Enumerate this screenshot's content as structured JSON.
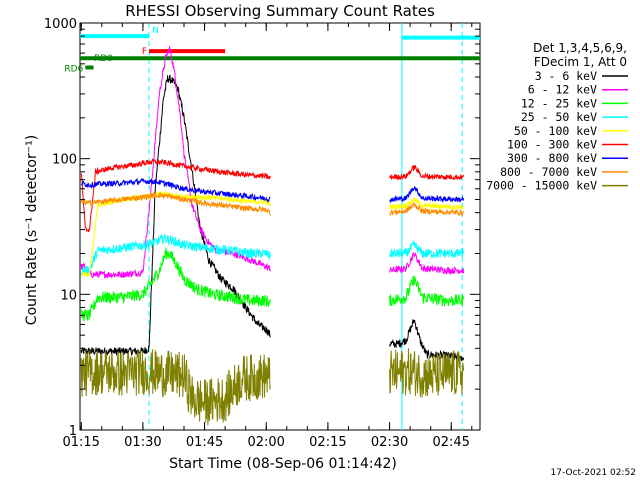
{
  "chart_data": {
    "type": "line",
    "title": "RHESSI Observing Summary Count Rates",
    "xlabel": "Start Time (08-Sep-06 01:14:42)",
    "ylabel": "Count Rate (s⁻¹ detector⁻¹)",
    "yscale": "log",
    "ylim": [
      1,
      1000
    ],
    "xlim": [
      "01:14:42",
      "02:52:00"
    ],
    "x_ticks": [
      "01:15",
      "01:30",
      "01:45",
      "02:00",
      "02:15",
      "02:30",
      "02:45"
    ],
    "y_ticks": [
      "1",
      "10",
      "100",
      "1000"
    ],
    "legend_title": [
      "Det 1,3,4,5,6,9,",
      "FDecim 1, Att 0"
    ],
    "legend_position": "right",
    "timestamp": "17-Oct-2021 02:52",
    "annotations": {
      "flags": [
        {
          "label": "N",
          "color": "#00ffff",
          "start": "01:14:42",
          "end": "01:31:30",
          "value": 800
        },
        {
          "label": "N",
          "color": "#00ffff",
          "start": "02:33:00",
          "end": "02:52:00",
          "value": 780
        },
        {
          "label": "F",
          "color": "#ff0000",
          "start": "01:31:30",
          "end": "01:50:00",
          "value": 620
        },
        {
          "label": "RD0",
          "color": "#008000",
          "start": "01:14:42",
          "end": "02:52:00",
          "value": 550
        },
        {
          "label": "RD6",
          "color": "#008000",
          "start": "01:16:00",
          "end": "01:18:00",
          "value": 470
        }
      ],
      "dashed_lines": [
        "01:31:30",
        "02:47:40"
      ],
      "solid_lines": [
        "02:33:00"
      ]
    },
    "series": [
      {
        "name": "3 - 6 keV",
        "color": "#000000",
        "points": [
          [
            "01:15:00",
            3.8
          ],
          [
            "01:30:00",
            3.8
          ],
          [
            "01:31:30",
            4
          ],
          [
            "01:33:00",
            60
          ],
          [
            "01:35:00",
            280
          ],
          [
            "01:36:00",
            390
          ],
          [
            "01:37:00",
            380
          ],
          [
            "01:38:30",
            330
          ],
          [
            "01:40:00",
            200
          ],
          [
            "01:42:00",
            80
          ],
          [
            "01:44:00",
            30
          ],
          [
            "01:46:00",
            18
          ],
          [
            "01:49:00",
            13
          ],
          [
            "01:52:00",
            11
          ],
          [
            "01:55:00",
            8
          ],
          [
            "01:58:00",
            6
          ],
          [
            "02:00:00",
            5.5
          ],
          [
            "02:01:00",
            5.0
          ]
        ],
        "segment2": [
          [
            "02:30:00",
            4.3
          ],
          [
            "02:32:00",
            4.3
          ],
          [
            "02:34:00",
            4.6
          ],
          [
            "02:36:00",
            6.5
          ],
          [
            "02:37:30",
            4.5
          ],
          [
            "02:39:00",
            3.6
          ],
          [
            "02:45:00",
            3.5
          ],
          [
            "02:48:00",
            3.4
          ]
        ]
      },
      {
        "name": "6 - 12 keV",
        "color": "#ff00ff",
        "points": [
          [
            "01:15:00",
            16
          ],
          [
            "01:16:00",
            16
          ],
          [
            "01:17:00",
            14
          ],
          [
            "01:19:00",
            14
          ],
          [
            "01:25:00",
            14
          ],
          [
            "01:30:00",
            14.5
          ],
          [
            "01:32:00",
            60
          ],
          [
            "01:34:00",
            300
          ],
          [
            "01:35:30",
            550
          ],
          [
            "01:36:30",
            650
          ],
          [
            "01:37:30",
            470
          ],
          [
            "01:39:00",
            220
          ],
          [
            "01:40:00",
            110
          ],
          [
            "01:42:00",
            45
          ],
          [
            "01:44:00",
            30
          ],
          [
            "01:46:00",
            24
          ],
          [
            "01:48:00",
            21
          ],
          [
            "01:52:00",
            20
          ],
          [
            "01:56:00",
            18
          ],
          [
            "02:00:00",
            16
          ],
          [
            "02:01:00",
            15.5
          ]
        ],
        "segment2": [
          [
            "02:30:00",
            15
          ],
          [
            "02:34:00",
            15.5
          ],
          [
            "02:36:00",
            20
          ],
          [
            "02:38:00",
            15.5
          ],
          [
            "02:44:00",
            15
          ],
          [
            "02:48:00",
            15
          ]
        ]
      },
      {
        "name": "12 - 25 keV",
        "color": "#00ff00",
        "points": [
          [
            "01:15:00",
            7
          ],
          [
            "01:17:00",
            7
          ],
          [
            "01:19:00",
            9.5
          ],
          [
            "01:25:00",
            9.5
          ],
          [
            "01:30:00",
            10
          ],
          [
            "01:32:00",
            12
          ],
          [
            "01:34:00",
            15
          ],
          [
            "01:35:30",
            20
          ],
          [
            "01:36:30",
            20
          ],
          [
            "01:38:00",
            17
          ],
          [
            "01:40:00",
            13
          ],
          [
            "01:43:00",
            11
          ],
          [
            "01:47:00",
            10
          ],
          [
            "01:52:00",
            9.5
          ],
          [
            "01:56:00",
            9
          ],
          [
            "02:00:00",
            9
          ],
          [
            "02:01:00",
            8.5
          ]
        ],
        "segment2": [
          [
            "02:30:00",
            9.0
          ],
          [
            "02:34:00",
            9.5
          ],
          [
            "02:36:00",
            13
          ],
          [
            "02:38:00",
            9.5
          ],
          [
            "02:44:00",
            9
          ],
          [
            "02:48:00",
            9
          ]
        ]
      },
      {
        "name": "25 - 50 keV",
        "color": "#00ffff",
        "points": [
          [
            "01:15:00",
            15
          ],
          [
            "01:17:00",
            15
          ],
          [
            "01:19:00",
            21
          ],
          [
            "01:25:00",
            22
          ],
          [
            "01:30:00",
            23
          ],
          [
            "01:33:00",
            24
          ],
          [
            "01:35:00",
            26
          ],
          [
            "01:37:00",
            25
          ],
          [
            "01:40:00",
            23
          ],
          [
            "01:45:00",
            22
          ],
          [
            "01:52:00",
            21
          ],
          [
            "01:56:00",
            20
          ],
          [
            "02:00:00",
            20
          ],
          [
            "02:01:00",
            19
          ]
        ],
        "segment2": [
          [
            "02:30:00",
            20
          ],
          [
            "02:34:00",
            20
          ],
          [
            "02:36:00",
            23
          ],
          [
            "02:38:00",
            20
          ],
          [
            "02:48:00",
            20
          ]
        ]
      },
      {
        "name": "50 - 100 keV",
        "color": "#ffff00",
        "points": [
          [
            "01:15:00",
            14
          ],
          [
            "01:17:00",
            14
          ],
          [
            "01:19:00",
            45
          ],
          [
            "01:25:00",
            50
          ],
          [
            "01:30:00",
            52
          ],
          [
            "01:33:00",
            54
          ],
          [
            "01:35:00",
            55
          ],
          [
            "01:38:00",
            53
          ],
          [
            "01:45:00",
            52
          ],
          [
            "01:52:00",
            50
          ],
          [
            "01:56:00",
            48
          ],
          [
            "02:00:00",
            48
          ],
          [
            "02:01:00",
            46
          ]
        ],
        "segment2": [
          [
            "02:30:00",
            44
          ],
          [
            "02:34:00",
            45
          ],
          [
            "02:36:00",
            50
          ],
          [
            "02:38:00",
            45
          ],
          [
            "02:48:00",
            44
          ]
        ]
      },
      {
        "name": "100 - 300 keV",
        "color": "#ff0000",
        "points": [
          [
            "01:15:00",
            80
          ],
          [
            "01:16:00",
            30
          ],
          [
            "01:17:00",
            30
          ],
          [
            "01:18:30",
            80
          ],
          [
            "01:22:00",
            85
          ],
          [
            "01:28:00",
            90
          ],
          [
            "01:32:00",
            95
          ],
          [
            "01:35:00",
            94
          ],
          [
            "01:40:00",
            88
          ],
          [
            "01:45:00",
            83
          ],
          [
            "01:50:00",
            79
          ],
          [
            "01:55:00",
            76
          ],
          [
            "02:00:00",
            74
          ],
          [
            "02:01:00",
            72
          ]
        ],
        "segment2": [
          [
            "02:30:00",
            73
          ],
          [
            "02:34:00",
            74
          ],
          [
            "02:36:00",
            87
          ],
          [
            "02:38:00",
            74
          ],
          [
            "02:48:00",
            73
          ]
        ]
      },
      {
        "name": "300 - 800 keV",
        "color": "#0000ff",
        "points": [
          [
            "01:15:00",
            66
          ],
          [
            "01:17:00",
            64
          ],
          [
            "01:19:00",
            65
          ],
          [
            "01:25:00",
            66
          ],
          [
            "01:30:00",
            68
          ],
          [
            "01:33:00",
            68
          ],
          [
            "01:36:00",
            65
          ],
          [
            "01:40:00",
            60
          ],
          [
            "01:45:00",
            57
          ],
          [
            "01:50:00",
            55
          ],
          [
            "01:55:00",
            53
          ],
          [
            "02:00:00",
            51
          ],
          [
            "02:01:00",
            50
          ]
        ],
        "segment2": [
          [
            "02:30:00",
            50
          ],
          [
            "02:34:00",
            51
          ],
          [
            "02:36:00",
            62
          ],
          [
            "02:38:00",
            51
          ],
          [
            "02:48:00",
            50
          ]
        ]
      },
      {
        "name": "800 - 7000 keV",
        "color": "#ff8c00",
        "points": [
          [
            "01:15:00",
            48
          ],
          [
            "01:17:00",
            47
          ],
          [
            "01:19:00",
            48
          ],
          [
            "01:25:00",
            50
          ],
          [
            "01:30:00",
            52
          ],
          [
            "01:33:00",
            54
          ],
          [
            "01:36:00",
            53
          ],
          [
            "01:40:00",
            50
          ],
          [
            "01:45:00",
            47
          ],
          [
            "01:50:00",
            45
          ],
          [
            "01:55:00",
            43
          ],
          [
            "02:00:00",
            42
          ],
          [
            "02:01:00",
            40
          ]
        ],
        "segment2": [
          [
            "02:30:00",
            40
          ],
          [
            "02:34:00",
            41
          ],
          [
            "02:36:00",
            46
          ],
          [
            "02:38:00",
            41
          ],
          [
            "02:48:00",
            40
          ]
        ]
      },
      {
        "name": "7000 - 15000 keV",
        "color": "#808000",
        "points": [
          [
            "01:15:00",
            2.6
          ],
          [
            "01:20:00",
            2.7
          ],
          [
            "01:25:00",
            2.6
          ],
          [
            "01:30:00",
            2.7
          ],
          [
            "01:35:00",
            2.6
          ],
          [
            "01:40:00",
            2.5
          ],
          [
            "01:42:00",
            1.7
          ],
          [
            "01:45:00",
            1.6
          ],
          [
            "01:50:00",
            1.7
          ],
          [
            "01:54:00",
            2.4
          ],
          [
            "02:00:00",
            2.5
          ],
          [
            "02:01:00",
            2.4
          ]
        ],
        "segment2": [
          [
            "02:30:00",
            2.6
          ],
          [
            "02:35:00",
            2.7
          ],
          [
            "02:40:00",
            2.5
          ],
          [
            "02:45:00",
            2.6
          ],
          [
            "02:48:00",
            2.6
          ]
        ]
      }
    ]
  }
}
